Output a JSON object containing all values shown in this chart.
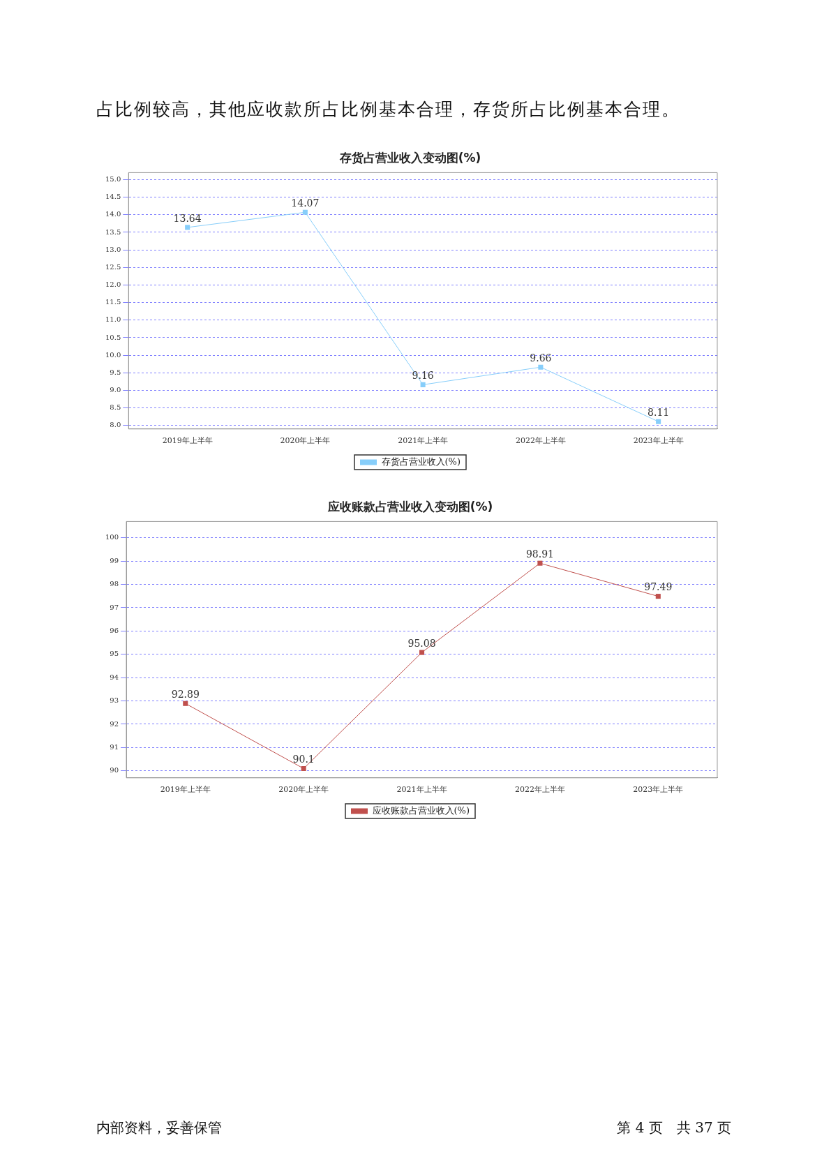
{
  "chart_data": [
    {
      "type": "line",
      "title": "存货占营业收入变动图(%)",
      "annotations": [
        "占比例较高，其他应收款所占比例基本合理，存货所占比例基本合理。"
      ],
      "categories": [
        "2019年上半年",
        "2020年上半年",
        "2021年上半年",
        "2022年上半年",
        "2023年上半年"
      ],
      "series": [
        {
          "name": "存货占营业收入(%)",
          "color": "#87cefa",
          "values": [
            13.64,
            14.07,
            9.16,
            9.66,
            8.11
          ]
        }
      ],
      "ylim": [
        7.9,
        15.2
      ],
      "yticks": [
        {
          "value": 8,
          "label": "8.0"
        },
        8.5,
        {
          "value": 9,
          "label": "9.0"
        },
        9.5,
        {
          "value": 10,
          "label": "10.0"
        },
        10.5,
        {
          "value": 11,
          "label": "11.0"
        },
        11.5,
        {
          "value": 12,
          "label": "12.0"
        },
        12.5,
        {
          "value": 13,
          "label": "13.0"
        },
        13.5,
        {
          "value": 14,
          "label": "14.0"
        },
        14.5,
        {
          "value": 15,
          "label": "15.0"
        }
      ],
      "grid": "y",
      "legend": "bottom",
      "marker": "square",
      "line_style": "solid",
      "data_labels": true
    },
    {
      "type": "line",
      "title": "应收账款占营业收入变动图(%)",
      "annotations": [
        "内部资料，妥善保管",
        "第 4 页　共 37 页"
      ],
      "categories": [
        "2019年上半年",
        "2020年上半年",
        "2021年上半年",
        "2022年上半年",
        "2023年上半年"
      ],
      "series": [
        {
          "name": "应收账款占营业收入(%)",
          "color": "#c0504d",
          "values": [
            92.89,
            90.1,
            95.08,
            98.91,
            97.49
          ]
        }
      ],
      "ylim": [
        89.7,
        100.7
      ],
      "yticks": [
        90,
        91,
        92,
        93,
        94,
        95,
        96,
        97,
        98,
        99,
        100
      ],
      "grid": "y",
      "legend": "bottom",
      "marker": "square",
      "line_style": "solid",
      "data_labels": true
    }
  ]
}
